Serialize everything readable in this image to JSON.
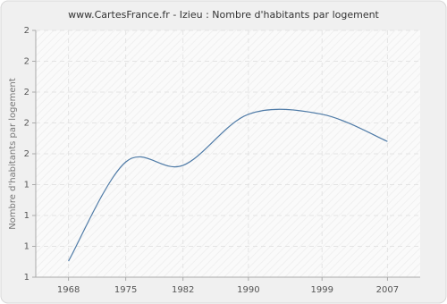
{
  "chart_data": {
    "type": "line",
    "title": "www.CartesFrance.fr - Izieu : Nombre d'habitants par logement",
    "y_label": "Nombre d'habitants par logement",
    "x": [
      1968,
      1975,
      1982,
      1990,
      1999,
      2007
    ],
    "series": [
      {
        "name": "Izieu",
        "color": "#4f7ba7",
        "values": [
          1.065,
          1.467,
          1.453,
          1.66,
          1.66,
          1.55
        ]
      }
    ],
    "xlim": [
      1964,
      2011
    ],
    "xticks": [
      1968,
      1975,
      1982,
      1990,
      1999,
      2007
    ],
    "ylim": [
      1,
      2
    ],
    "yticks": [
      1,
      {
        "value": 1.125,
        "label": "1"
      },
      {
        "value": 1.25,
        "label": "1"
      },
      {
        "value": 1.375,
        "label": "1"
      },
      {
        "value": 1.5,
        "label": "2"
      },
      {
        "value": 1.625,
        "label": "2"
      },
      {
        "value": 1.75,
        "label": "2"
      },
      {
        "value": 1.875,
        "label": "2"
      },
      2
    ],
    "grid": true
  }
}
